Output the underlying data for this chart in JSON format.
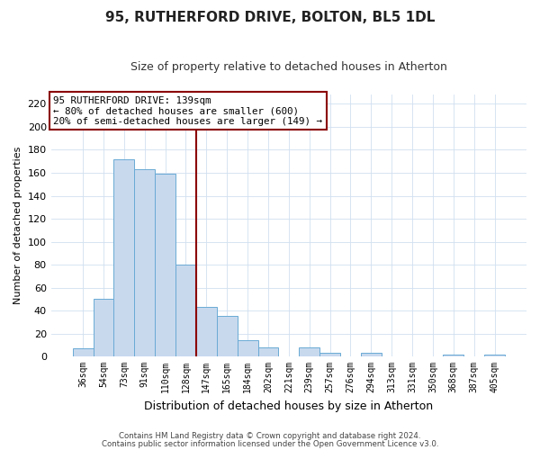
{
  "title": "95, RUTHERFORD DRIVE, BOLTON, BL5 1DL",
  "subtitle": "Size of property relative to detached houses in Atherton",
  "xlabel": "Distribution of detached houses by size in Atherton",
  "ylabel": "Number of detached properties",
  "bar_labels": [
    "36sqm",
    "54sqm",
    "73sqm",
    "91sqm",
    "110sqm",
    "128sqm",
    "147sqm",
    "165sqm",
    "184sqm",
    "202sqm",
    "221sqm",
    "239sqm",
    "257sqm",
    "276sqm",
    "294sqm",
    "313sqm",
    "331sqm",
    "350sqm",
    "368sqm",
    "387sqm",
    "405sqm"
  ],
  "bar_values": [
    7,
    50,
    172,
    163,
    159,
    80,
    43,
    35,
    14,
    8,
    0,
    8,
    3,
    0,
    3,
    0,
    0,
    0,
    2,
    0,
    2
  ],
  "bar_color": "#c8d9ee",
  "bar_edge_color": "#6aaad4",
  "vline_position": 5.5,
  "vline_color": "#8b0000",
  "ylim": [
    0,
    228
  ],
  "yticks": [
    0,
    20,
    40,
    60,
    80,
    100,
    120,
    140,
    160,
    180,
    200,
    220
  ],
  "annotation_title": "95 RUTHERFORD DRIVE: 139sqm",
  "annotation_line1": "← 80% of detached houses are smaller (600)",
  "annotation_line2": "20% of semi-detached houses are larger (149) →",
  "annotation_box_color": "#ffffff",
  "annotation_box_edge": "#8b0000",
  "footer1": "Contains HM Land Registry data © Crown copyright and database right 2024.",
  "footer2": "Contains public sector information licensed under the Open Government Licence v3.0."
}
